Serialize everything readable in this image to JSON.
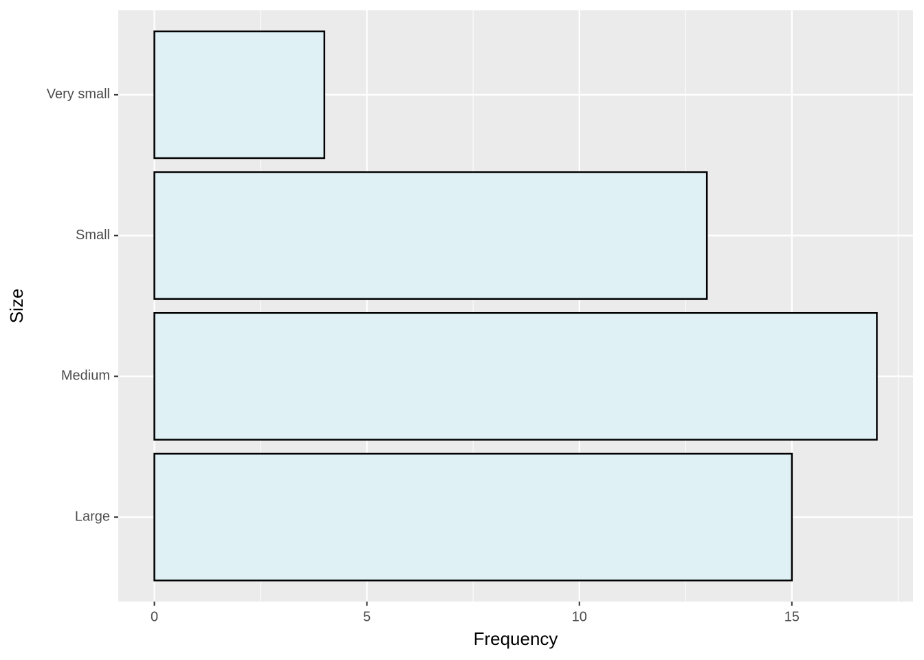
{
  "chart_data": {
    "type": "bar",
    "orientation": "horizontal",
    "x_label": "Frequency",
    "y_label": "Size",
    "categories": [
      "Large",
      "Medium",
      "Small",
      "Very small"
    ],
    "values": [
      15,
      17,
      13,
      4
    ],
    "color": "#dff1f5",
    "edgecolor": "#000000",
    "xlim": [
      -0.85,
      17.85
    ],
    "xticks": [
      0,
      5,
      10,
      15
    ],
    "xminorticks": [
      2.5,
      7.5,
      12.5,
      17.5
    ],
    "grid": true
  }
}
